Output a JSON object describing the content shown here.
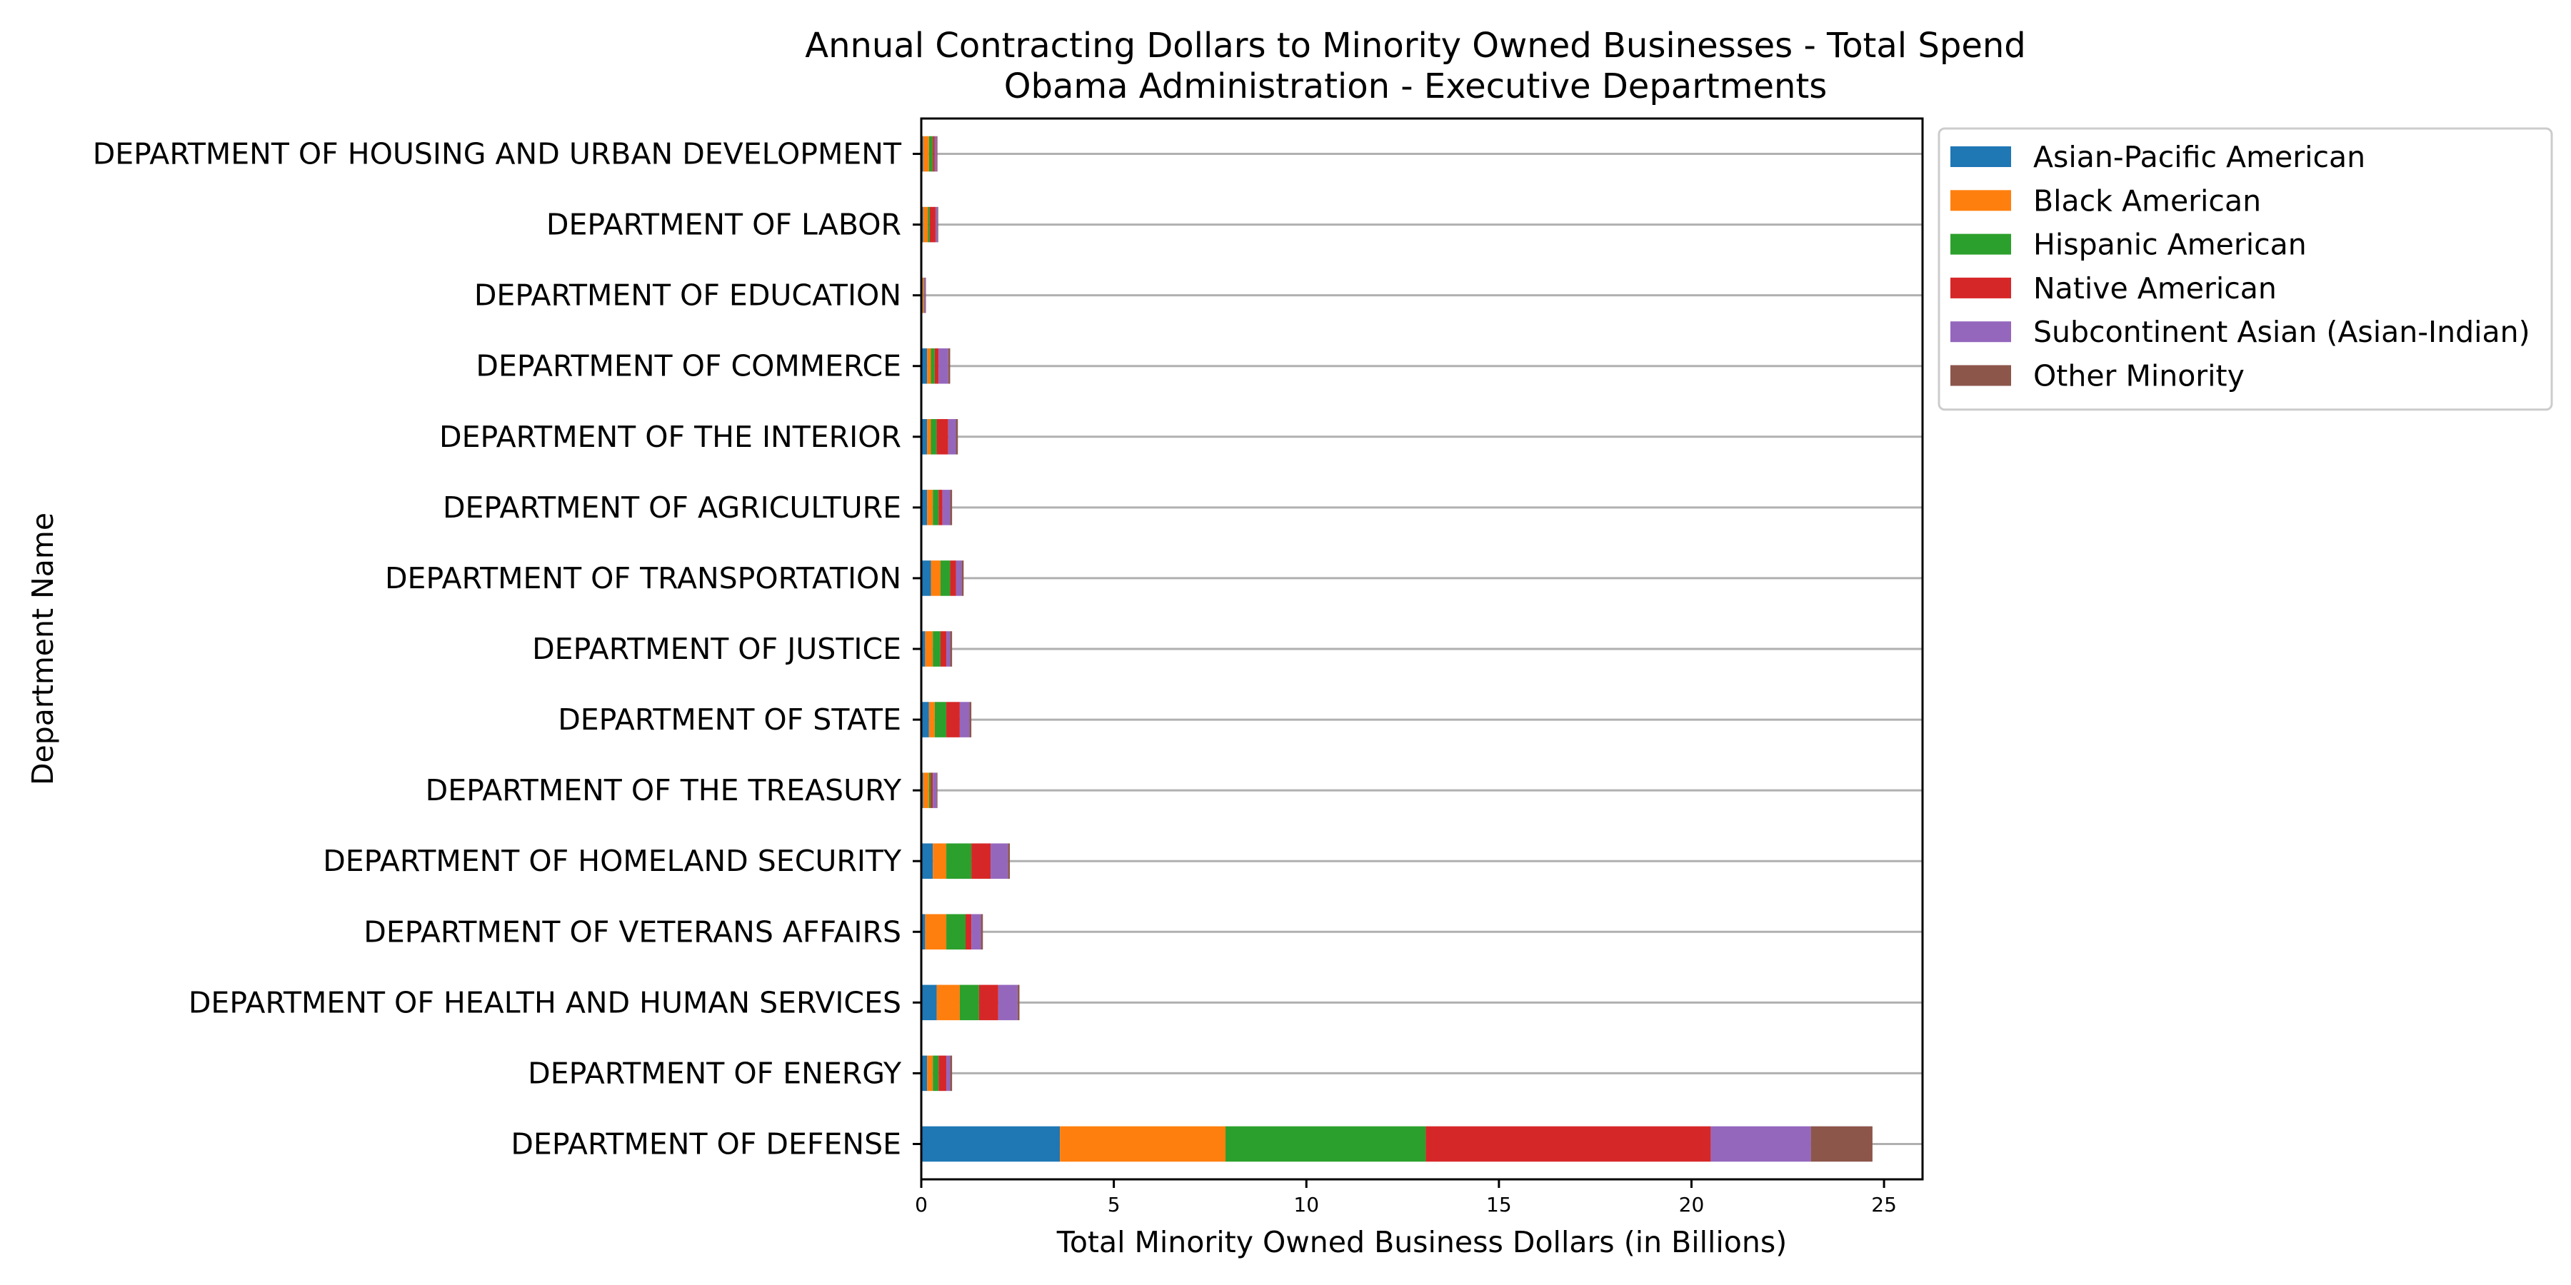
{
  "chart_data": {
    "type": "bar",
    "orientation": "horizontal",
    "stacked": true,
    "title": "Annual Contracting Dollars to Minority Owned Businesses - Total Spend",
    "subtitle": "Obama Administration - Executive Departments",
    "xlabel": "Total Minority Owned Business Dollars (in Billions)",
    "ylabel": "Department Name",
    "xlim": [
      0,
      26
    ],
    "xticks": [
      0,
      5,
      10,
      15,
      20,
      25
    ],
    "grid": "horizontal",
    "legend_position": "outside-right",
    "categories": [
      "DEPARTMENT OF DEFENSE",
      "DEPARTMENT OF ENERGY",
      "DEPARTMENT OF HEALTH AND HUMAN SERVICES",
      "DEPARTMENT OF VETERANS AFFAIRS ",
      "DEPARTMENT OF HOMELAND SECURITY ",
      "DEPARTMENT OF THE TREASURY",
      "DEPARTMENT OF STATE",
      "DEPARTMENT OF JUSTICE",
      "DEPARTMENT OF TRANSPORTATION",
      "DEPARTMENT OF AGRICULTURE",
      "DEPARTMENT OF THE INTERIOR",
      "DEPARTMENT OF COMMERCE",
      "DEPARTMENT OF EDUCATION",
      "DEPARTMENT OF LABOR",
      "DEPARTMENT OF HOUSING AND URBAN DEVELOPMENT"
    ],
    "series": [
      {
        "name": "Asian-Pacific American",
        "color": "#1f77b4",
        "values": [
          3.6,
          0.15,
          0.4,
          0.1,
          0.3,
          0.05,
          0.2,
          0.1,
          0.25,
          0.15,
          0.15,
          0.15,
          0.02,
          0.05,
          0.05
        ]
      },
      {
        "name": "Black American",
        "color": "#ff7f0e",
        "values": [
          4.3,
          0.15,
          0.6,
          0.55,
          0.35,
          0.15,
          0.15,
          0.2,
          0.25,
          0.15,
          0.1,
          0.1,
          0.03,
          0.12,
          0.15
        ]
      },
      {
        "name": "Hispanic American",
        "color": "#2ca02c",
        "values": [
          5.2,
          0.15,
          0.5,
          0.5,
          0.65,
          0.05,
          0.3,
          0.2,
          0.25,
          0.15,
          0.15,
          0.1,
          0.01,
          0.05,
          0.1
        ]
      },
      {
        "name": "Native American",
        "color": "#d62728",
        "values": [
          7.4,
          0.2,
          0.5,
          0.15,
          0.5,
          0.05,
          0.35,
          0.15,
          0.15,
          0.1,
          0.3,
          0.1,
          0.01,
          0.15,
          0.05
        ]
      },
      {
        "name": "Subcontinent Asian (Asian-Indian)",
        "color": "#9467bd",
        "values": [
          2.6,
          0.1,
          0.5,
          0.25,
          0.45,
          0.1,
          0.25,
          0.1,
          0.15,
          0.2,
          0.2,
          0.25,
          0.03,
          0.05,
          0.05
        ]
      },
      {
        "name": "Other Minority",
        "color": "#8c564b",
        "values": [
          1.6,
          0.05,
          0.05,
          0.05,
          0.05,
          0.02,
          0.05,
          0.05,
          0.05,
          0.05,
          0.05,
          0.05,
          0.02,
          0.02,
          0.02
        ]
      }
    ]
  }
}
